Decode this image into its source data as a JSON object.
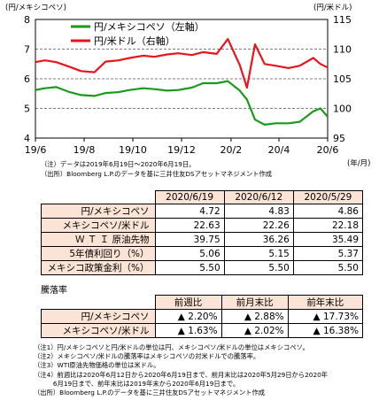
{
  "chart_data": {
    "type": "line",
    "left_unit_label": "(円/メキシコペソ)",
    "right_unit_label": "(円/米ドル)",
    "x_axis_unit": "(年/月)",
    "left_axis": {
      "ylim": [
        4,
        8
      ],
      "ticks": [
        "4",
        "5",
        "6",
        "7",
        "8"
      ]
    },
    "right_axis": {
      "ylim": [
        95,
        115
      ],
      "ticks": [
        "95",
        "100",
        "105",
        "110",
        "115"
      ]
    },
    "x_ticks": [
      "19/6",
      "19/8",
      "19/10",
      "19/12",
      "20/2",
      "20/4",
      "20/6"
    ],
    "grid": "horizontal-dashed",
    "legend_position": "top-left",
    "series": [
      {
        "name": "円/メキシコペソ（左軸）",
        "axis": "left",
        "color": "#1a9a1a",
        "x": [
          "2019/06/19",
          "2019/07/01",
          "2019/07/15",
          "2019/08/01",
          "2019/08/15",
          "2019/09/01",
          "2019/09/15",
          "2019/10/01",
          "2019/10/15",
          "2019/11/01",
          "2019/11/15",
          "2019/12/01",
          "2019/12/15",
          "2020/01/01",
          "2020/01/15",
          "2020/02/01",
          "2020/02/15",
          "2020/03/01",
          "2020/03/10",
          "2020/03/20",
          "2020/04/01",
          "2020/04/15",
          "2020/05/01",
          "2020/05/15",
          "2020/06/01",
          "2020/06/10",
          "2020/06/19"
        ],
        "values": [
          5.62,
          5.68,
          5.72,
          5.55,
          5.45,
          5.42,
          5.52,
          5.55,
          5.62,
          5.68,
          5.65,
          5.6,
          5.62,
          5.7,
          5.85,
          5.85,
          5.92,
          5.6,
          5.3,
          4.62,
          4.45,
          4.5,
          4.5,
          4.55,
          4.9,
          5.0,
          4.72
        ]
      },
      {
        "name": "円/米ドル（右軸）",
        "axis": "right",
        "color": "#e8141c",
        "x": [
          "2019/06/19",
          "2019/07/01",
          "2019/07/15",
          "2019/08/01",
          "2019/08/15",
          "2019/09/01",
          "2019/09/15",
          "2019/10/01",
          "2019/10/15",
          "2019/11/01",
          "2019/11/15",
          "2019/12/01",
          "2019/12/15",
          "2020/01/01",
          "2020/01/15",
          "2020/02/01",
          "2020/02/15",
          "2020/03/01",
          "2020/03/10",
          "2020/03/20",
          "2020/04/01",
          "2020/04/15",
          "2020/05/01",
          "2020/05/15",
          "2020/06/01",
          "2020/06/10",
          "2020/06/19"
        ],
        "values": [
          107.8,
          108.1,
          107.8,
          107.0,
          106.3,
          106.1,
          107.9,
          108.1,
          108.5,
          108.9,
          108.7,
          109.1,
          109.3,
          109.0,
          109.5,
          109.2,
          111.7,
          107.3,
          103.5,
          110.8,
          107.5,
          107.2,
          106.8,
          107.2,
          108.5,
          107.5,
          106.9
        ]
      }
    ]
  },
  "chart_notes": {
    "note1": "（注）データは2019年6月19日～2020年6月19日。",
    "source": "（出所）Bloomberg L.P.のデータを基に三井住友DSアセットマネジメント作成"
  },
  "table1": {
    "columns": [
      "2020/6/19",
      "2020/6/12",
      "2020/5/29"
    ],
    "rows": [
      {
        "label": "円/メキシコペソ",
        "values": [
          "4.72",
          "4.83",
          "4.86"
        ]
      },
      {
        "label": "メキシコペソ/米ドル",
        "values": [
          "22.63",
          "22.26",
          "22.18"
        ]
      },
      {
        "label": "Ｗ Ｔ Ｉ 原油先物",
        "values": [
          "39.75",
          "36.26",
          "35.49"
        ]
      },
      {
        "label": "5年債利回り（%）",
        "values": [
          "5.06",
          "5.15",
          "5.37"
        ]
      },
      {
        "label": "メキシコ政策金利（%）",
        "values": [
          "5.50",
          "5.50",
          "5.50"
        ]
      }
    ]
  },
  "table2": {
    "title": "騰落率",
    "columns": [
      "前週比",
      "前月末比",
      "前年末比"
    ],
    "rows": [
      {
        "label": "円/メキシコペソ",
        "values": [
          "▲ 2.20%",
          "▲ 2.88%",
          "▲ 17.73%"
        ]
      },
      {
        "label": "メキシコペソ/米ドル",
        "values": [
          "▲ 1.63%",
          "▲ 2.02%",
          "▲ 16.38%"
        ]
      }
    ]
  },
  "footnotes": [
    "（注1）円/メキシコペソと円/米ドルの単位は円、メキシコペソ/米ドルの単位はメキシコペソ。",
    "（注2）メキシコペソ/米ドルの騰落率はメキシコペソの対米ドルでの騰落率。",
    "（注3）WTI原油先物価格の単位は米ドル。",
    "（注4）前週比は2020年6月12日から2020年6月19日まで、前月末比は2020年5月29日から2020年",
    "　　　6月19日まで、前年末比は2019年末から2020年6月19日まで。",
    "（出所）Bloomberg L.P.のデータを基に三井住友DSアセットマネジメント作成"
  ]
}
